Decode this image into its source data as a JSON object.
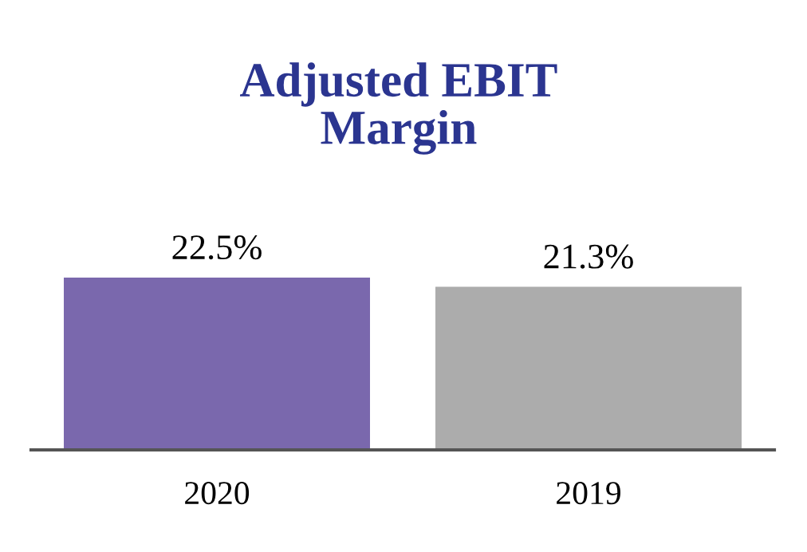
{
  "chart_data": {
    "type": "bar",
    "title": "Adjusted EBIT\nMargin",
    "categories": [
      "2020",
      "2019"
    ],
    "values": [
      22.5,
      21.3
    ],
    "colors": [
      "#7a68ad",
      "#acacac"
    ],
    "value_labels": [
      "22.5%",
      "21.3%"
    ],
    "grid": false,
    "legend": false
  }
}
